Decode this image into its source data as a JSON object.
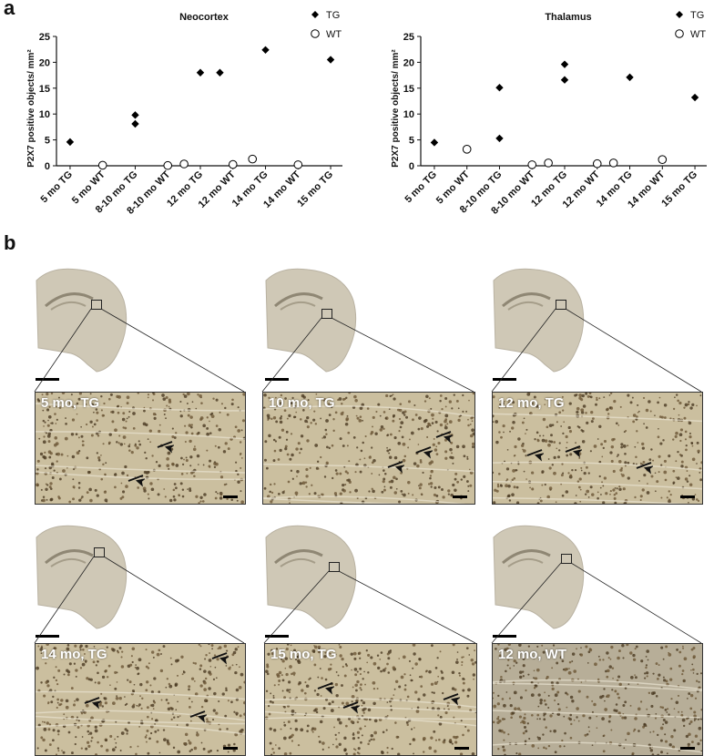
{
  "panels": {
    "a_letter": "a",
    "b_letter": "b"
  },
  "legend": {
    "tg": "TG",
    "wt": "WT"
  },
  "chart_data": [
    {
      "type": "scatter",
      "title": "Neocortex",
      "ylabel": "P2X7 positive objects/ mm²",
      "categories": [
        "5 mo TG",
        "5 mo WT",
        "8-10 mo TG",
        "8-10 mo WT",
        "12 mo TG",
        "12 mo WT",
        "14 mo TG",
        "14 mo WT",
        "15 mo TG"
      ],
      "ylim": [
        0,
        25
      ],
      "yticks": [
        0,
        5,
        10,
        15,
        20,
        25
      ],
      "series": [
        {
          "name": "TG",
          "marker": "diamond",
          "points": [
            [
              0,
              4.6
            ],
            [
              2,
              8.1
            ],
            [
              2,
              9.8
            ],
            [
              4,
              18.0
            ],
            [
              4.6,
              18.0
            ],
            [
              6,
              22.4
            ],
            [
              8,
              20.5
            ]
          ]
        },
        {
          "name": "WT",
          "marker": "circle",
          "points": [
            [
              1,
              0.1
            ],
            [
              3,
              0.05
            ],
            [
              3.5,
              0.35
            ],
            [
              5,
              0.25
            ],
            [
              5.6,
              1.3
            ],
            [
              7,
              0.2
            ]
          ]
        }
      ]
    },
    {
      "type": "scatter",
      "title": "Thalamus",
      "ylabel": "P2X7 positive objects/ mm²",
      "categories": [
        "5 mo TG",
        "5 mo WT",
        "8-10 mo TG",
        "8-10 mo WT",
        "12 mo TG",
        "12 mo WT",
        "14 mo TG",
        "14 mo WT",
        "15 mo TG"
      ],
      "ylim": [
        0,
        25
      ],
      "yticks": [
        0,
        5,
        10,
        15,
        20,
        25
      ],
      "series": [
        {
          "name": "TG",
          "marker": "diamond",
          "points": [
            [
              0,
              4.5
            ],
            [
              2,
              5.3
            ],
            [
              2,
              15.1
            ],
            [
              4,
              16.6
            ],
            [
              4,
              19.6
            ],
            [
              6,
              17.1
            ],
            [
              8,
              13.2
            ]
          ]
        },
        {
          "name": "WT",
          "marker": "circle",
          "points": [
            [
              1,
              3.2
            ],
            [
              3,
              0.2
            ],
            [
              3.5,
              0.55
            ],
            [
              5,
              0.4
            ],
            [
              5.5,
              0.55
            ],
            [
              7,
              1.2
            ]
          ]
        }
      ]
    }
  ],
  "micrographs": [
    {
      "label": "5 mo, TG"
    },
    {
      "label": "10 mo, TG"
    },
    {
      "label": "12 mo, TG"
    },
    {
      "label": "14 mo, TG"
    },
    {
      "label": "15 mo, TG"
    },
    {
      "label": "12 mo, WT"
    }
  ],
  "colors": {
    "tissue": "#cbbf9f",
    "slice": "#cfc8b6",
    "marker": "#000000"
  }
}
